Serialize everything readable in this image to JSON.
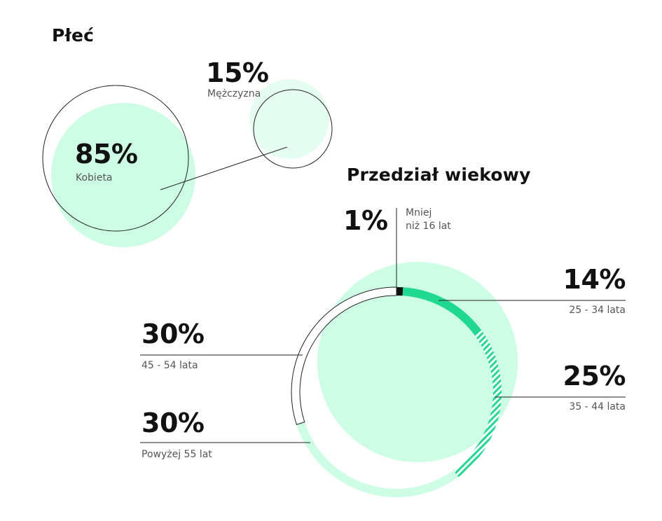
{
  "colors": {
    "mint_fill": "#cdfde4",
    "mint_light": "#e6fdf1",
    "accent_green": "#1fd991",
    "dark": "#111111"
  },
  "chart_data": [
    {
      "type": "bubble",
      "title": "Płeć",
      "series": [
        {
          "label": "Kobieta",
          "value": 85,
          "display": "85%"
        },
        {
          "label": "Mężczyzna",
          "value": 15,
          "display": "15%"
        }
      ]
    },
    {
      "type": "donut",
      "title": "Przedział wiekowy",
      "series": [
        {
          "label": "Mniej niż 16 lat",
          "label_lines": [
            "Mniej",
            "niż 16 lat"
          ],
          "value": 1,
          "display": "1%",
          "style": "dark"
        },
        {
          "label": "25 - 34 lata",
          "value": 14,
          "display": "14%",
          "style": "solid-green"
        },
        {
          "label": "35 - 44 lata",
          "value": 25,
          "display": "25%",
          "style": "hatched-green"
        },
        {
          "label": "Powyżej 55 lat",
          "value": 30,
          "display": "30%",
          "style": "light-mint"
        },
        {
          "label": "45 - 54 lata",
          "value": 30,
          "display": "30%",
          "style": "outline"
        }
      ]
    }
  ]
}
